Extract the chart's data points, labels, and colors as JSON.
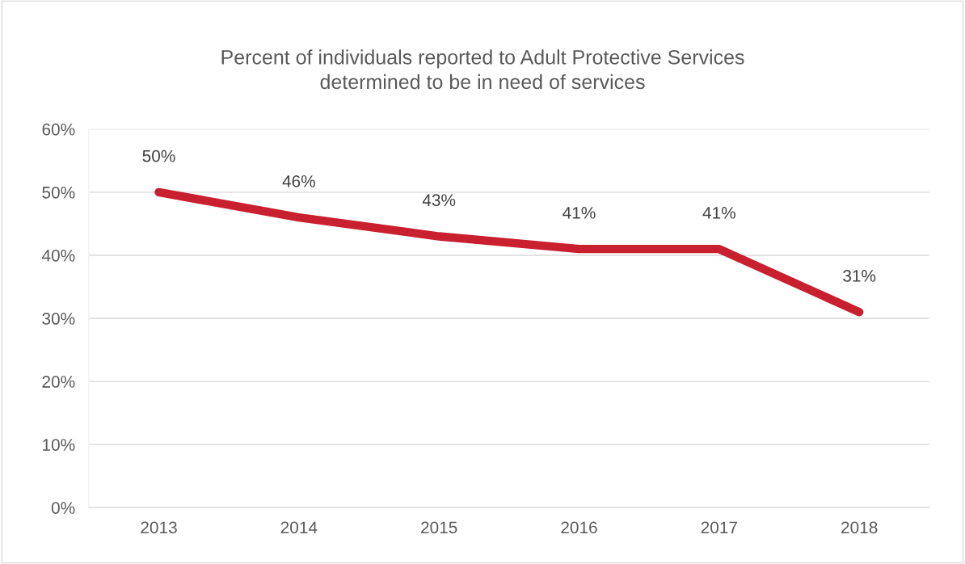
{
  "chart_data": {
    "type": "line",
    "title": "Percent of individuals reported to Adult Protective Services\ndetermined to be in need of services",
    "categories": [
      "2013",
      "2014",
      "2015",
      "2016",
      "2017",
      "2018"
    ],
    "series": [
      {
        "color": "#c8202f",
        "values": [
          50,
          46,
          43,
          41,
          41,
          31
        ]
      }
    ],
    "ylim": [
      0,
      60
    ],
    "yticks": [
      {
        "value": 0,
        "label": "0%"
      },
      {
        "value": 10,
        "label": "10%"
      },
      {
        "value": 20,
        "label": "20%"
      },
      {
        "value": 30,
        "label": "30%"
      },
      {
        "value": 40,
        "label": "40%"
      },
      {
        "value": 50,
        "label": "50%"
      },
      {
        "value": 60,
        "label": "60%"
      }
    ],
    "value_labels": [
      "50%",
      "46%",
      "43%",
      "41%",
      "41%",
      "31%"
    ],
    "grid": "y",
    "marker": "none",
    "line_style": "solid"
  }
}
